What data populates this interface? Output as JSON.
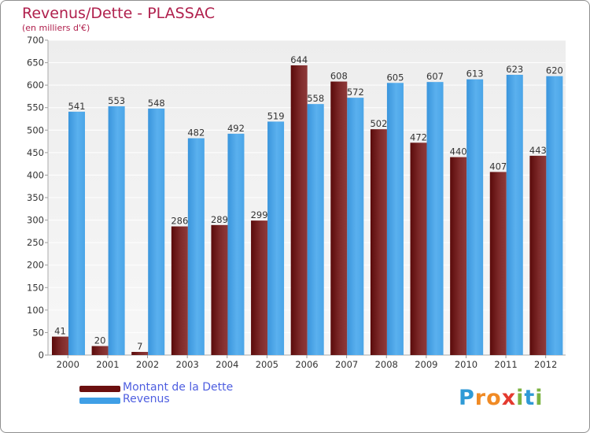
{
  "title": "Revenus/Dette - PLASSAC",
  "subtitle": "(en milliers d'€)",
  "logo": {
    "letters": [
      "P",
      "r",
      "o",
      "x",
      "i",
      "t",
      "i"
    ],
    "colors": [
      "#2f9ad6",
      "#f08a24",
      "#f08a24",
      "#e43a2f",
      "#7cb342",
      "#2f9ad6",
      "#7cb342"
    ]
  },
  "legend": [
    {
      "label": "Montant de la Dette",
      "color": "#6b0f0f"
    },
    {
      "label": "Revenus",
      "color": "#3f9fe6"
    }
  ],
  "chart_data": {
    "type": "bar",
    "categories": [
      "2000",
      "2001",
      "2002",
      "2003",
      "2004",
      "2005",
      "2006",
      "2007",
      "2008",
      "2009",
      "2010",
      "2011",
      "2012"
    ],
    "series": [
      {
        "name": "Montant de la Dette",
        "color": "#6b0f0f",
        "values": [
          41,
          20,
          7,
          286,
          289,
          299,
          644,
          608,
          502,
          472,
          440,
          407,
          443
        ]
      },
      {
        "name": "Revenus",
        "color": "#3f9fe6",
        "values": [
          541,
          553,
          548,
          482,
          492,
          519,
          558,
          572,
          605,
          607,
          613,
          623,
          620
        ]
      }
    ],
    "ylim": [
      0,
      700
    ],
    "yticks": [
      0,
      50,
      100,
      150,
      200,
      250,
      300,
      350,
      400,
      450,
      500,
      550,
      600,
      650,
      700
    ],
    "grid": true,
    "legend_position": "bottom-left"
  }
}
